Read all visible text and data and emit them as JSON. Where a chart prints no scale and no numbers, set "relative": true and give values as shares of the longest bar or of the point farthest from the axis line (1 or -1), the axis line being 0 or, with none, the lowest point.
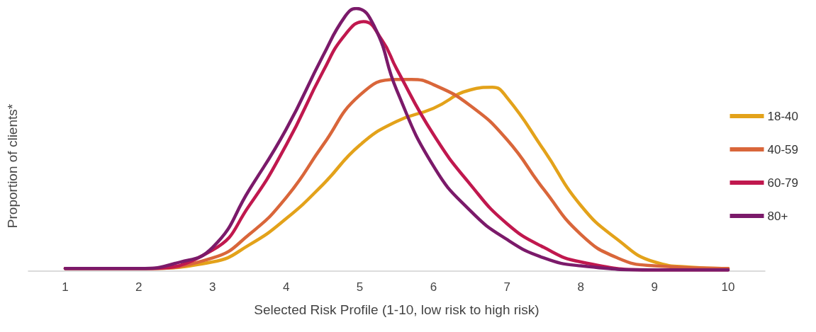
{
  "chart_data": {
    "type": "line",
    "relative": true,
    "xlabel": "Selected Risk Profile (1-10, low risk to high risk)",
    "ylabel": "Proportion of clients*",
    "xlim": [
      0.5,
      10.5
    ],
    "xticks": [
      1,
      2,
      3,
      4,
      5,
      6,
      7,
      8,
      9,
      10
    ],
    "grid": false,
    "legend": "right",
    "marker": "none",
    "line_style": "solid",
    "series": [
      {
        "name": "18-40",
        "color": "#e3a21a",
        "x": [
          1,
          2,
          3,
          3.5,
          4,
          4.5,
          5,
          5.5,
          6,
          6.5,
          6.8,
          7,
          7.5,
          8,
          8.5,
          9,
          9.5,
          10
        ],
        "values": [
          0.01,
          0.01,
          0.035,
          0.1,
          0.2,
          0.33,
          0.48,
          0.57,
          0.62,
          0.69,
          0.7,
          0.66,
          0.46,
          0.25,
          0.12,
          0.035,
          0.015,
          0.01
        ]
      },
      {
        "name": "40-59",
        "color": "#d9663a",
        "x": [
          1,
          2,
          3,
          3.5,
          4,
          4.5,
          5,
          5.5,
          5.7,
          6,
          6.5,
          7,
          7.5,
          8,
          8.5,
          9,
          10
        ],
        "values": [
          0.01,
          0.01,
          0.05,
          0.14,
          0.28,
          0.48,
          0.67,
          0.73,
          0.73,
          0.71,
          0.63,
          0.5,
          0.31,
          0.14,
          0.05,
          0.02,
          0.01
        ]
      },
      {
        "name": "60-79",
        "color": "#c0184e",
        "x": [
          1,
          2,
          3,
          3.5,
          4,
          4.5,
          4.8,
          5.05,
          5.3,
          5.5,
          6,
          6.5,
          7,
          7.5,
          8,
          9,
          10
        ],
        "values": [
          0.01,
          0.01,
          0.08,
          0.25,
          0.48,
          0.76,
          0.9,
          0.95,
          0.88,
          0.77,
          0.52,
          0.33,
          0.18,
          0.09,
          0.035,
          0.005,
          0.005
        ]
      },
      {
        "name": "80+",
        "color": "#7b1a6a",
        "x": [
          1,
          2,
          2.5,
          3,
          3.5,
          4,
          4.5,
          4.8,
          4.95,
          5.2,
          5.5,
          6,
          6.5,
          7,
          7.5,
          8,
          9,
          10
        ],
        "values": [
          0.01,
          0.01,
          0.03,
          0.09,
          0.31,
          0.54,
          0.82,
          0.97,
          1,
          0.93,
          0.69,
          0.4,
          0.23,
          0.12,
          0.05,
          0.02,
          0.005,
          0.005
        ]
      }
    ]
  }
}
